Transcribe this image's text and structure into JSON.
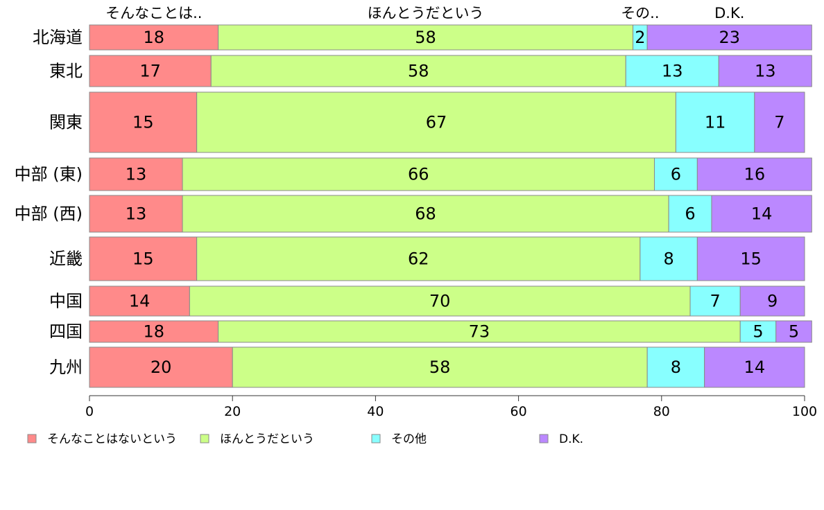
{
  "chart_data": {
    "type": "bar",
    "orientation": "horizontal",
    "stacked": true,
    "title": "",
    "xlabel": "",
    "ylabel": "",
    "xlim": [
      0,
      100
    ],
    "x_ticks": [
      "0",
      "20",
      "40",
      "60",
      "80",
      "100"
    ],
    "categories": [
      "北海道",
      "東北",
      "関東",
      "中部 (東)",
      "中部 (西)",
      "近畿",
      "中国",
      "四国",
      "九州"
    ],
    "top_labels": [
      "そんなことは..",
      "ほんとうだという",
      "その..",
      "D.K."
    ],
    "series": [
      {
        "name": "そんなことはないという",
        "color": "#ff8a8a",
        "values": [
          18,
          17,
          15,
          13,
          13,
          15,
          14,
          18,
          20
        ]
      },
      {
        "name": "ほんとうだという",
        "color": "#ccff88",
        "values": [
          58,
          58,
          67,
          66,
          68,
          62,
          70,
          73,
          58
        ]
      },
      {
        "name": "その他",
        "color": "#88ffff",
        "values": [
          2,
          13,
          11,
          6,
          6,
          8,
          7,
          5,
          8
        ]
      },
      {
        "name": "D.K.",
        "color": "#bb88ff",
        "values": [
          23,
          13,
          7,
          16,
          14,
          15,
          9,
          5,
          14
        ]
      }
    ],
    "legend_position": "bottom",
    "grid": false
  }
}
